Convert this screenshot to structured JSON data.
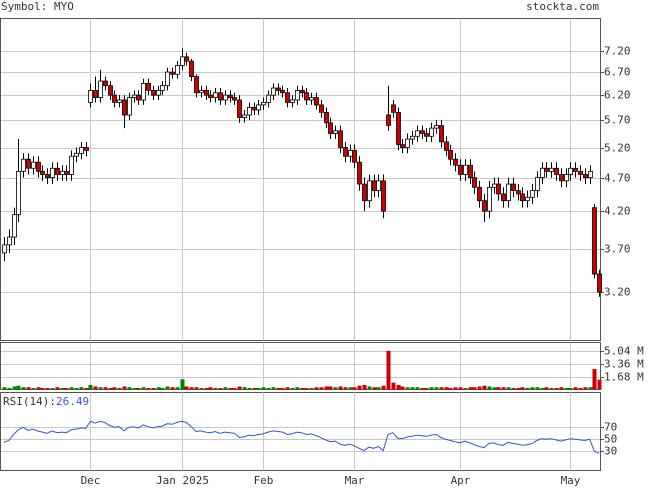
{
  "chart_data": {
    "type": "candlestick",
    "title": "Symbol: MYO",
    "source": "stockta.com",
    "categories": [
      null,
      null,
      null,
      null,
      null,
      null,
      null,
      null,
      null,
      null,
      null,
      null,
      null,
      null,
      null,
      null,
      null,
      null,
      "Dec",
      null,
      null,
      null,
      null,
      null,
      null,
      null,
      null,
      null,
      null,
      null,
      null,
      null,
      null,
      null,
      null,
      null,
      null,
      "Jan 2025",
      null,
      null,
      null,
      null,
      null,
      null,
      null,
      null,
      null,
      null,
      null,
      null,
      null,
      null,
      null,
      null,
      "Feb",
      null,
      null,
      null,
      null,
      null,
      null,
      null,
      null,
      null,
      null,
      null,
      null,
      null,
      null,
      null,
      null,
      null,
      null,
      "Mar",
      null,
      null,
      null,
      null,
      null,
      null,
      null,
      null,
      null,
      null,
      null,
      null,
      null,
      null,
      null,
      null,
      null,
      null,
      null,
      null,
      null,
      "Apr",
      null,
      null,
      null,
      null,
      null,
      null,
      null,
      null,
      null,
      null,
      null,
      null,
      null,
      null,
      null,
      null,
      null,
      null,
      null,
      null,
      null,
      null,
      "May",
      null,
      null,
      null,
      null,
      null,
      null
    ],
    "price": {
      "log": true,
      "grid": true,
      "up_color": "#ffffff",
      "down_color": "#cc0000",
      "ylim": [
        2.72,
        8.02
      ],
      "yticks": [
        {
          "value": 7.2,
          "label": "7.20"
        },
        {
          "value": 6.7,
          "label": "6.70"
        },
        {
          "value": 6.2,
          "label": "6.20"
        },
        {
          "value": 5.7,
          "label": "5.70"
        },
        {
          "value": 5.2,
          "label": "5.20"
        },
        {
          "value": 4.7,
          "label": "4.70"
        },
        {
          "value": 4.2,
          "label": "4.20"
        },
        {
          "value": 3.7,
          "label": "3.70"
        },
        {
          "value": 3.2,
          "label": "3.20"
        }
      ],
      "open": [
        3.65,
        3.75,
        3.85,
        4.15,
        4.8,
        5.0,
        4.85,
        4.95,
        4.8,
        4.75,
        4.7,
        4.85,
        4.75,
        4.8,
        4.75,
        5.05,
        5.1,
        5.2,
        6.05,
        6.3,
        6.15,
        6.5,
        6.4,
        6.2,
        6.05,
        6.1,
        5.8,
        6.15,
        6.2,
        6.1,
        6.45,
        6.3,
        6.2,
        6.3,
        6.4,
        6.7,
        6.65,
        6.85,
        7.05,
        6.95,
        6.6,
        6.25,
        6.3,
        6.2,
        6.15,
        6.25,
        6.1,
        6.2,
        6.15,
        6.1,
        5.75,
        5.8,
        5.95,
        5.9,
        6.0,
        6.05,
        6.2,
        6.35,
        6.3,
        6.25,
        6.05,
        6.1,
        6.3,
        6.25,
        6.1,
        6.15,
        6.0,
        5.85,
        5.65,
        5.45,
        5.5,
        5.2,
        5.05,
        5.15,
        4.95,
        4.6,
        4.35,
        4.65,
        4.5,
        4.65,
        5.8,
        6.0,
        5.85,
        5.25,
        5.2,
        5.35,
        5.4,
        5.5,
        5.45,
        5.4,
        5.55,
        5.6,
        5.3,
        5.15,
        5.0,
        4.9,
        4.75,
        4.9,
        4.7,
        4.55,
        4.35,
        4.2,
        4.55,
        4.6,
        4.45,
        4.35,
        4.6,
        4.5,
        4.45,
        4.35,
        4.4,
        4.5,
        4.7,
        4.85,
        4.8,
        4.85,
        4.75,
        4.65,
        4.75,
        4.85,
        4.8,
        4.75,
        4.7,
        4.25,
        3.4
      ],
      "high": [
        3.85,
        3.95,
        4.25,
        5.35,
        5.1,
        5.1,
        5.05,
        5.05,
        4.9,
        4.85,
        4.95,
        4.95,
        4.9,
        4.9,
        5.15,
        5.2,
        5.3,
        5.3,
        6.45,
        6.6,
        6.75,
        6.6,
        6.5,
        6.3,
        6.2,
        6.2,
        6.25,
        6.3,
        6.3,
        6.55,
        6.55,
        6.4,
        6.4,
        6.5,
        6.8,
        6.8,
        6.95,
        7.25,
        7.15,
        7.0,
        6.65,
        6.4,
        6.4,
        6.3,
        6.35,
        6.35,
        6.3,
        6.3,
        6.25,
        6.2,
        5.9,
        6.05,
        6.05,
        6.1,
        6.15,
        6.3,
        6.45,
        6.45,
        6.4,
        6.35,
        6.2,
        6.4,
        6.4,
        6.35,
        6.25,
        6.25,
        6.1,
        5.95,
        5.75,
        5.6,
        5.6,
        5.3,
        5.25,
        5.25,
        5.05,
        4.7,
        4.75,
        4.75,
        4.75,
        4.75,
        6.4,
        6.1,
        5.95,
        5.35,
        5.45,
        5.5,
        5.6,
        5.6,
        5.55,
        5.65,
        5.7,
        5.7,
        5.4,
        5.25,
        5.1,
        5.0,
        5.0,
        5.0,
        4.8,
        4.65,
        4.45,
        4.65,
        4.7,
        4.7,
        4.55,
        4.7,
        4.7,
        4.6,
        4.55,
        4.5,
        4.6,
        4.8,
        4.95,
        4.95,
        4.95,
        4.95,
        4.85,
        4.85,
        4.95,
        4.95,
        4.9,
        4.85,
        4.9,
        4.3,
        3.45
      ],
      "low": [
        3.55,
        3.65,
        3.75,
        4.05,
        4.7,
        4.75,
        4.75,
        4.7,
        4.65,
        4.6,
        4.6,
        4.65,
        4.65,
        4.65,
        4.65,
        4.95,
        5.0,
        5.05,
        5.95,
        6.05,
        6.05,
        6.3,
        6.1,
        5.95,
        5.95,
        5.55,
        5.7,
        6.05,
        6.0,
        6.0,
        6.2,
        6.1,
        6.1,
        6.2,
        6.3,
        6.55,
        6.55,
        6.75,
        6.85,
        6.5,
        6.15,
        6.15,
        6.1,
        6.05,
        6.05,
        6.0,
        6.0,
        6.05,
        6.0,
        5.65,
        5.65,
        5.7,
        5.8,
        5.8,
        5.9,
        5.95,
        6.1,
        6.2,
        6.15,
        5.95,
        5.95,
        6.0,
        6.15,
        6.0,
        6.0,
        5.9,
        5.75,
        5.55,
        5.35,
        5.35,
        5.1,
        4.95,
        4.95,
        4.85,
        4.5,
        4.2,
        4.25,
        4.4,
        4.4,
        4.1,
        5.5,
        5.75,
        5.15,
        5.1,
        5.1,
        5.25,
        5.3,
        5.35,
        5.3,
        5.3,
        5.45,
        5.2,
        5.05,
        4.9,
        4.8,
        4.65,
        4.65,
        4.6,
        4.45,
        4.25,
        4.05,
        4.1,
        4.45,
        4.35,
        4.25,
        4.25,
        4.4,
        4.35,
        4.25,
        4.25,
        4.3,
        4.4,
        4.6,
        4.7,
        4.7,
        4.65,
        4.55,
        4.55,
        4.65,
        4.7,
        4.65,
        4.6,
        4.6,
        3.35,
        3.15
      ],
      "close": [
        3.75,
        3.85,
        4.15,
        4.8,
        5.0,
        4.85,
        4.95,
        4.8,
        4.75,
        4.7,
        4.85,
        4.75,
        4.8,
        4.75,
        5.05,
        5.1,
        5.2,
        5.15,
        6.3,
        6.15,
        6.5,
        6.4,
        6.2,
        6.05,
        6.1,
        5.8,
        6.15,
        6.2,
        6.1,
        6.45,
        6.3,
        6.2,
        6.3,
        6.4,
        6.7,
        6.65,
        6.85,
        7.05,
        6.95,
        6.6,
        6.25,
        6.3,
        6.2,
        6.15,
        6.25,
        6.1,
        6.2,
        6.15,
        6.1,
        5.75,
        5.8,
        5.95,
        5.9,
        6.0,
        6.05,
        6.2,
        6.35,
        6.3,
        6.25,
        6.05,
        6.1,
        6.3,
        6.25,
        6.1,
        6.15,
        6.0,
        5.85,
        5.65,
        5.45,
        5.5,
        5.2,
        5.05,
        5.15,
        4.95,
        4.6,
        4.35,
        4.65,
        4.5,
        4.65,
        4.2,
        5.6,
        5.85,
        5.25,
        5.2,
        5.35,
        5.4,
        5.5,
        5.45,
        5.4,
        5.55,
        5.6,
        5.3,
        5.15,
        5.0,
        4.9,
        4.75,
        4.9,
        4.7,
        4.55,
        4.35,
        4.2,
        4.55,
        4.6,
        4.45,
        4.35,
        4.6,
        4.5,
        4.45,
        4.35,
        4.4,
        4.5,
        4.7,
        4.85,
        4.8,
        4.85,
        4.75,
        4.65,
        4.75,
        4.85,
        4.8,
        4.75,
        4.7,
        4.8,
        3.4,
        3.2
      ]
    },
    "volume": {
      "up_color": "#008000",
      "down_color": "#cc0000",
      "ylim": [
        0,
        6.2
      ],
      "yticks": [
        {
          "value": 5.04,
          "label": "5.04 M"
        },
        {
          "value": 3.36,
          "label": "3.36 M"
        },
        {
          "value": 1.68,
          "label": "1.68 M"
        }
      ],
      "values": [
        0.3,
        0.2,
        0.4,
        0.5,
        0.3,
        0.3,
        0.2,
        0.3,
        0.2,
        0.2,
        0.2,
        0.3,
        0.2,
        0.2,
        0.3,
        0.2,
        0.3,
        0.2,
        0.6,
        0.4,
        0.3,
        0.3,
        0.2,
        0.3,
        0.2,
        0.4,
        0.3,
        0.2,
        0.2,
        0.3,
        0.2,
        0.2,
        0.3,
        0.2,
        0.4,
        0.3,
        0.3,
        1.35,
        0.4,
        0.3,
        0.3,
        0.2,
        0.2,
        0.3,
        0.2,
        0.2,
        0.3,
        0.2,
        0.2,
        0.4,
        0.3,
        0.2,
        0.2,
        0.2,
        0.3,
        0.2,
        0.3,
        0.2,
        0.2,
        0.3,
        0.2,
        0.3,
        0.2,
        0.2,
        0.2,
        0.3,
        0.3,
        0.4,
        0.4,
        0.3,
        0.4,
        0.3,
        0.3,
        0.3,
        0.5,
        0.6,
        0.4,
        0.3,
        0.3,
        0.5,
        5.1,
        0.9,
        0.6,
        0.4,
        0.3,
        0.3,
        0.3,
        0.2,
        0.2,
        0.3,
        0.3,
        0.3,
        0.3,
        0.2,
        0.3,
        0.3,
        0.2,
        0.3,
        0.3,
        0.4,
        0.5,
        0.4,
        0.3,
        0.3,
        0.3,
        0.3,
        0.2,
        0.2,
        0.3,
        0.2,
        0.3,
        0.3,
        0.2,
        0.3,
        0.2,
        0.2,
        0.3,
        0.2,
        0.2,
        0.3,
        0.2,
        0.3,
        0.3,
        2.7,
        1.3
      ]
    },
    "rsi": {
      "label": "RSI(14):",
      "color": "#3355cc",
      "ylim": [
        -2,
        128
      ],
      "yticks": [
        70,
        50,
        30
      ],
      "values": [
        45,
        48,
        58,
        66,
        70,
        65,
        67,
        64,
        62,
        60,
        64,
        61,
        62,
        61,
        66,
        67,
        69,
        68,
        80,
        77,
        80,
        78,
        73,
        70,
        71,
        64,
        70,
        71,
        69,
        74,
        71,
        69,
        71,
        72,
        76,
        75,
        78,
        80,
        78,
        71,
        63,
        64,
        62,
        61,
        63,
        60,
        62,
        61,
        60,
        53,
        54,
        57,
        56,
        58,
        59,
        62,
        64,
        63,
        62,
        58,
        59,
        62,
        61,
        58,
        59,
        56,
        53,
        49,
        46,
        47,
        42,
        40,
        42,
        39,
        35,
        31,
        37,
        35,
        38,
        31,
        58,
        61,
        52,
        51,
        54,
        55,
        57,
        56,
        55,
        57,
        58,
        53,
        50,
        48,
        46,
        44,
        47,
        44,
        41,
        38,
        36,
        43,
        44,
        41,
        40,
        45,
        43,
        42,
        40,
        41,
        43,
        48,
        51,
        50,
        51,
        49,
        47,
        49,
        51,
        50,
        49,
        48,
        50,
        30,
        26.49
      ]
    }
  }
}
